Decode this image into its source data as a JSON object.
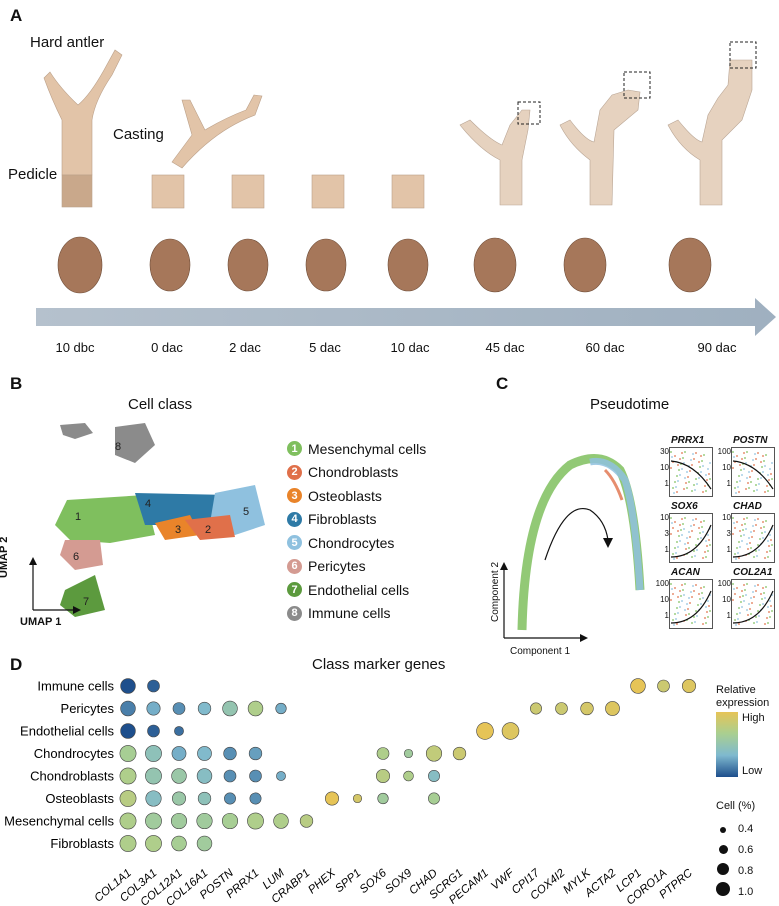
{
  "panelA": {
    "letter": "A",
    "labels": {
      "hard_antler": "Hard antler",
      "casting": "Casting",
      "pedicle": "Pedicle"
    },
    "timepoints": [
      "10 dbc",
      "0 dac",
      "2 dac",
      "5 dac",
      "10 dac",
      "45 dac",
      "60 dac",
      "90 dac"
    ]
  },
  "panelB": {
    "letter": "B",
    "title": "Cell class",
    "axis_x": "UMAP 1",
    "axis_y": "UMAP 2",
    "legend": [
      {
        "num": "1",
        "label": "Mesenchymal cells",
        "color": "#7fbf5e"
      },
      {
        "num": "2",
        "label": "Chondroblasts",
        "color": "#e0704a"
      },
      {
        "num": "3",
        "label": "Osteoblasts",
        "color": "#e9842a"
      },
      {
        "num": "4",
        "label": "Fibroblasts",
        "color": "#2e7aa6"
      },
      {
        "num": "5",
        "label": "Chondrocytes",
        "color": "#8fc1df"
      },
      {
        "num": "6",
        "label": "Pericytes",
        "color": "#d49b92"
      },
      {
        "num": "7",
        "label": "Endothelial cells",
        "color": "#5c9a3e"
      },
      {
        "num": "8",
        "label": "Immune cells",
        "color": "#8b8b8b"
      }
    ]
  },
  "panelC": {
    "letter": "C",
    "title": "Pseudotime",
    "axis_x": "Component 1",
    "axis_y": "Component 2",
    "genes": [
      {
        "name": "PRRX1",
        "ticks": [
          "30",
          "10",
          "1"
        ]
      },
      {
        "name": "POSTN",
        "ticks": [
          "100",
          "10",
          "1"
        ]
      },
      {
        "name": "SOX6",
        "ticks": [
          "10",
          "3",
          "1"
        ]
      },
      {
        "name": "CHAD",
        "ticks": [
          "10",
          "3",
          "1"
        ]
      },
      {
        "name": "ACAN",
        "ticks": [
          "100",
          "10",
          "1"
        ]
      },
      {
        "name": "COL2A1",
        "ticks": [
          "100",
          "10",
          "1"
        ]
      }
    ]
  },
  "panelD": {
    "letter": "D",
    "title": "Class marker genes",
    "rows": [
      "Immune cells",
      "Pericytes",
      "Endothelial cells",
      "Chondrocytes",
      "Chondroblasts",
      "Osteoblasts",
      "Mesenchymal cells",
      "Fibroblasts"
    ],
    "genes": [
      "COL1A1",
      "COL3A1",
      "COL12A1",
      "COL16A1",
      "POSTN",
      "PRRX1",
      "LUM",
      "CRABP1",
      "PHEX",
      "SPP1",
      "SOX6",
      "SOX9",
      "CHAD",
      "SCRG1",
      "PECAM1",
      "VWF",
      "CPI17",
      "COX4I2",
      "MYLK",
      "ACTA2",
      "LCP1",
      "CORO1A",
      "PTPRC"
    ],
    "legend_expression_title": "Relative\nexpression",
    "legend_high": "High",
    "legend_low": "Low",
    "legend_size_title": "Cell (%)",
    "legend_sizes": [
      "0.4",
      "0.6",
      "0.8",
      "1.0"
    ],
    "scale_colors": [
      "#e6c457",
      "#a9cf91",
      "#7fb9cf",
      "#1e4f8c"
    ],
    "dots": [
      {
        "r": 0,
        "g": 0,
        "size": 0.7,
        "expr": 0.0
      },
      {
        "r": 0,
        "g": 1,
        "size": 0.5,
        "expr": 0.05
      },
      {
        "r": 0,
        "g": 20,
        "size": 0.7,
        "expr": 1.0
      },
      {
        "r": 0,
        "g": 21,
        "size": 0.5,
        "expr": 0.85
      },
      {
        "r": 0,
        "g": 22,
        "size": 0.6,
        "expr": 0.95
      },
      {
        "r": 1,
        "g": 0,
        "size": 0.7,
        "expr": 0.15
      },
      {
        "r": 1,
        "g": 1,
        "size": 0.6,
        "expr": 0.3
      },
      {
        "r": 1,
        "g": 2,
        "size": 0.5,
        "expr": 0.2
      },
      {
        "r": 1,
        "g": 3,
        "size": 0.55,
        "expr": 0.35
      },
      {
        "r": 1,
        "g": 4,
        "size": 0.7,
        "expr": 0.5
      },
      {
        "r": 1,
        "g": 5,
        "size": 0.7,
        "expr": 0.7
      },
      {
        "r": 1,
        "g": 6,
        "size": 0.4,
        "expr": 0.3
      },
      {
        "r": 1,
        "g": 16,
        "size": 0.45,
        "expr": 0.85
      },
      {
        "r": 1,
        "g": 17,
        "size": 0.5,
        "expr": 0.85
      },
      {
        "r": 1,
        "g": 18,
        "size": 0.55,
        "expr": 0.9
      },
      {
        "r": 1,
        "g": 19,
        "size": 0.65,
        "expr": 0.95
      },
      {
        "r": 2,
        "g": 0,
        "size": 0.7,
        "expr": 0.0
      },
      {
        "r": 2,
        "g": 1,
        "size": 0.5,
        "expr": 0.05
      },
      {
        "r": 2,
        "g": 2,
        "size": 0.3,
        "expr": 0.1
      },
      {
        "r": 2,
        "g": 14,
        "size": 0.85,
        "expr": 1.0
      },
      {
        "r": 2,
        "g": 15,
        "size": 0.85,
        "expr": 0.95
      },
      {
        "r": 3,
        "g": 0,
        "size": 0.8,
        "expr": 0.65
      },
      {
        "r": 3,
        "g": 1,
        "size": 0.8,
        "expr": 0.45
      },
      {
        "r": 3,
        "g": 2,
        "size": 0.65,
        "expr": 0.3
      },
      {
        "r": 3,
        "g": 3,
        "size": 0.65,
        "expr": 0.35
      },
      {
        "r": 3,
        "g": 4,
        "size": 0.55,
        "expr": 0.2
      },
      {
        "r": 3,
        "g": 5,
        "size": 0.55,
        "expr": 0.25
      },
      {
        "r": 3,
        "g": 10,
        "size": 0.5,
        "expr": 0.7
      },
      {
        "r": 3,
        "g": 11,
        "size": 0.25,
        "expr": 0.6
      },
      {
        "r": 3,
        "g": 12,
        "size": 0.75,
        "expr": 0.8
      },
      {
        "r": 3,
        "g": 13,
        "size": 0.55,
        "expr": 0.85
      },
      {
        "r": 4,
        "g": 0,
        "size": 0.8,
        "expr": 0.7
      },
      {
        "r": 4,
        "g": 1,
        "size": 0.8,
        "expr": 0.5
      },
      {
        "r": 4,
        "g": 2,
        "size": 0.7,
        "expr": 0.55
      },
      {
        "r": 4,
        "g": 3,
        "size": 0.7,
        "expr": 0.4
      },
      {
        "r": 4,
        "g": 4,
        "size": 0.5,
        "expr": 0.2
      },
      {
        "r": 4,
        "g": 5,
        "size": 0.5,
        "expr": 0.2
      },
      {
        "r": 4,
        "g": 6,
        "size": 0.3,
        "expr": 0.3
      },
      {
        "r": 4,
        "g": 10,
        "size": 0.6,
        "expr": 0.75
      },
      {
        "r": 4,
        "g": 11,
        "size": 0.35,
        "expr": 0.7
      },
      {
        "r": 4,
        "g": 12,
        "size": 0.45,
        "expr": 0.4
      },
      {
        "r": 5,
        "g": 0,
        "size": 0.8,
        "expr": 0.75
      },
      {
        "r": 5,
        "g": 1,
        "size": 0.75,
        "expr": 0.4
      },
      {
        "r": 5,
        "g": 2,
        "size": 0.6,
        "expr": 0.55
      },
      {
        "r": 5,
        "g": 3,
        "size": 0.55,
        "expr": 0.45
      },
      {
        "r": 5,
        "g": 4,
        "size": 0.45,
        "expr": 0.2
      },
      {
        "r": 5,
        "g": 5,
        "size": 0.45,
        "expr": 0.2
      },
      {
        "r": 5,
        "g": 8,
        "size": 0.6,
        "expr": 1.0
      },
      {
        "r": 5,
        "g": 9,
        "size": 0.25,
        "expr": 0.9
      },
      {
        "r": 5,
        "g": 10,
        "size": 0.4,
        "expr": 0.6
      },
      {
        "r": 5,
        "g": 12,
        "size": 0.45,
        "expr": 0.65
      },
      {
        "r": 6,
        "g": 0,
        "size": 0.8,
        "expr": 0.7
      },
      {
        "r": 6,
        "g": 1,
        "size": 0.8,
        "expr": 0.6
      },
      {
        "r": 6,
        "g": 2,
        "size": 0.75,
        "expr": 0.6
      },
      {
        "r": 6,
        "g": 3,
        "size": 0.75,
        "expr": 0.6
      },
      {
        "r": 6,
        "g": 4,
        "size": 0.75,
        "expr": 0.65
      },
      {
        "r": 6,
        "g": 5,
        "size": 0.8,
        "expr": 0.7
      },
      {
        "r": 6,
        "g": 6,
        "size": 0.7,
        "expr": 0.7
      },
      {
        "r": 6,
        "g": 7,
        "size": 0.55,
        "expr": 0.75
      },
      {
        "r": 7,
        "g": 0,
        "size": 0.8,
        "expr": 0.7
      },
      {
        "r": 7,
        "g": 1,
        "size": 0.8,
        "expr": 0.7
      },
      {
        "r": 7,
        "g": 2,
        "size": 0.7,
        "expr": 0.65
      },
      {
        "r": 7,
        "g": 3,
        "size": 0.7,
        "expr": 0.6
      }
    ]
  }
}
